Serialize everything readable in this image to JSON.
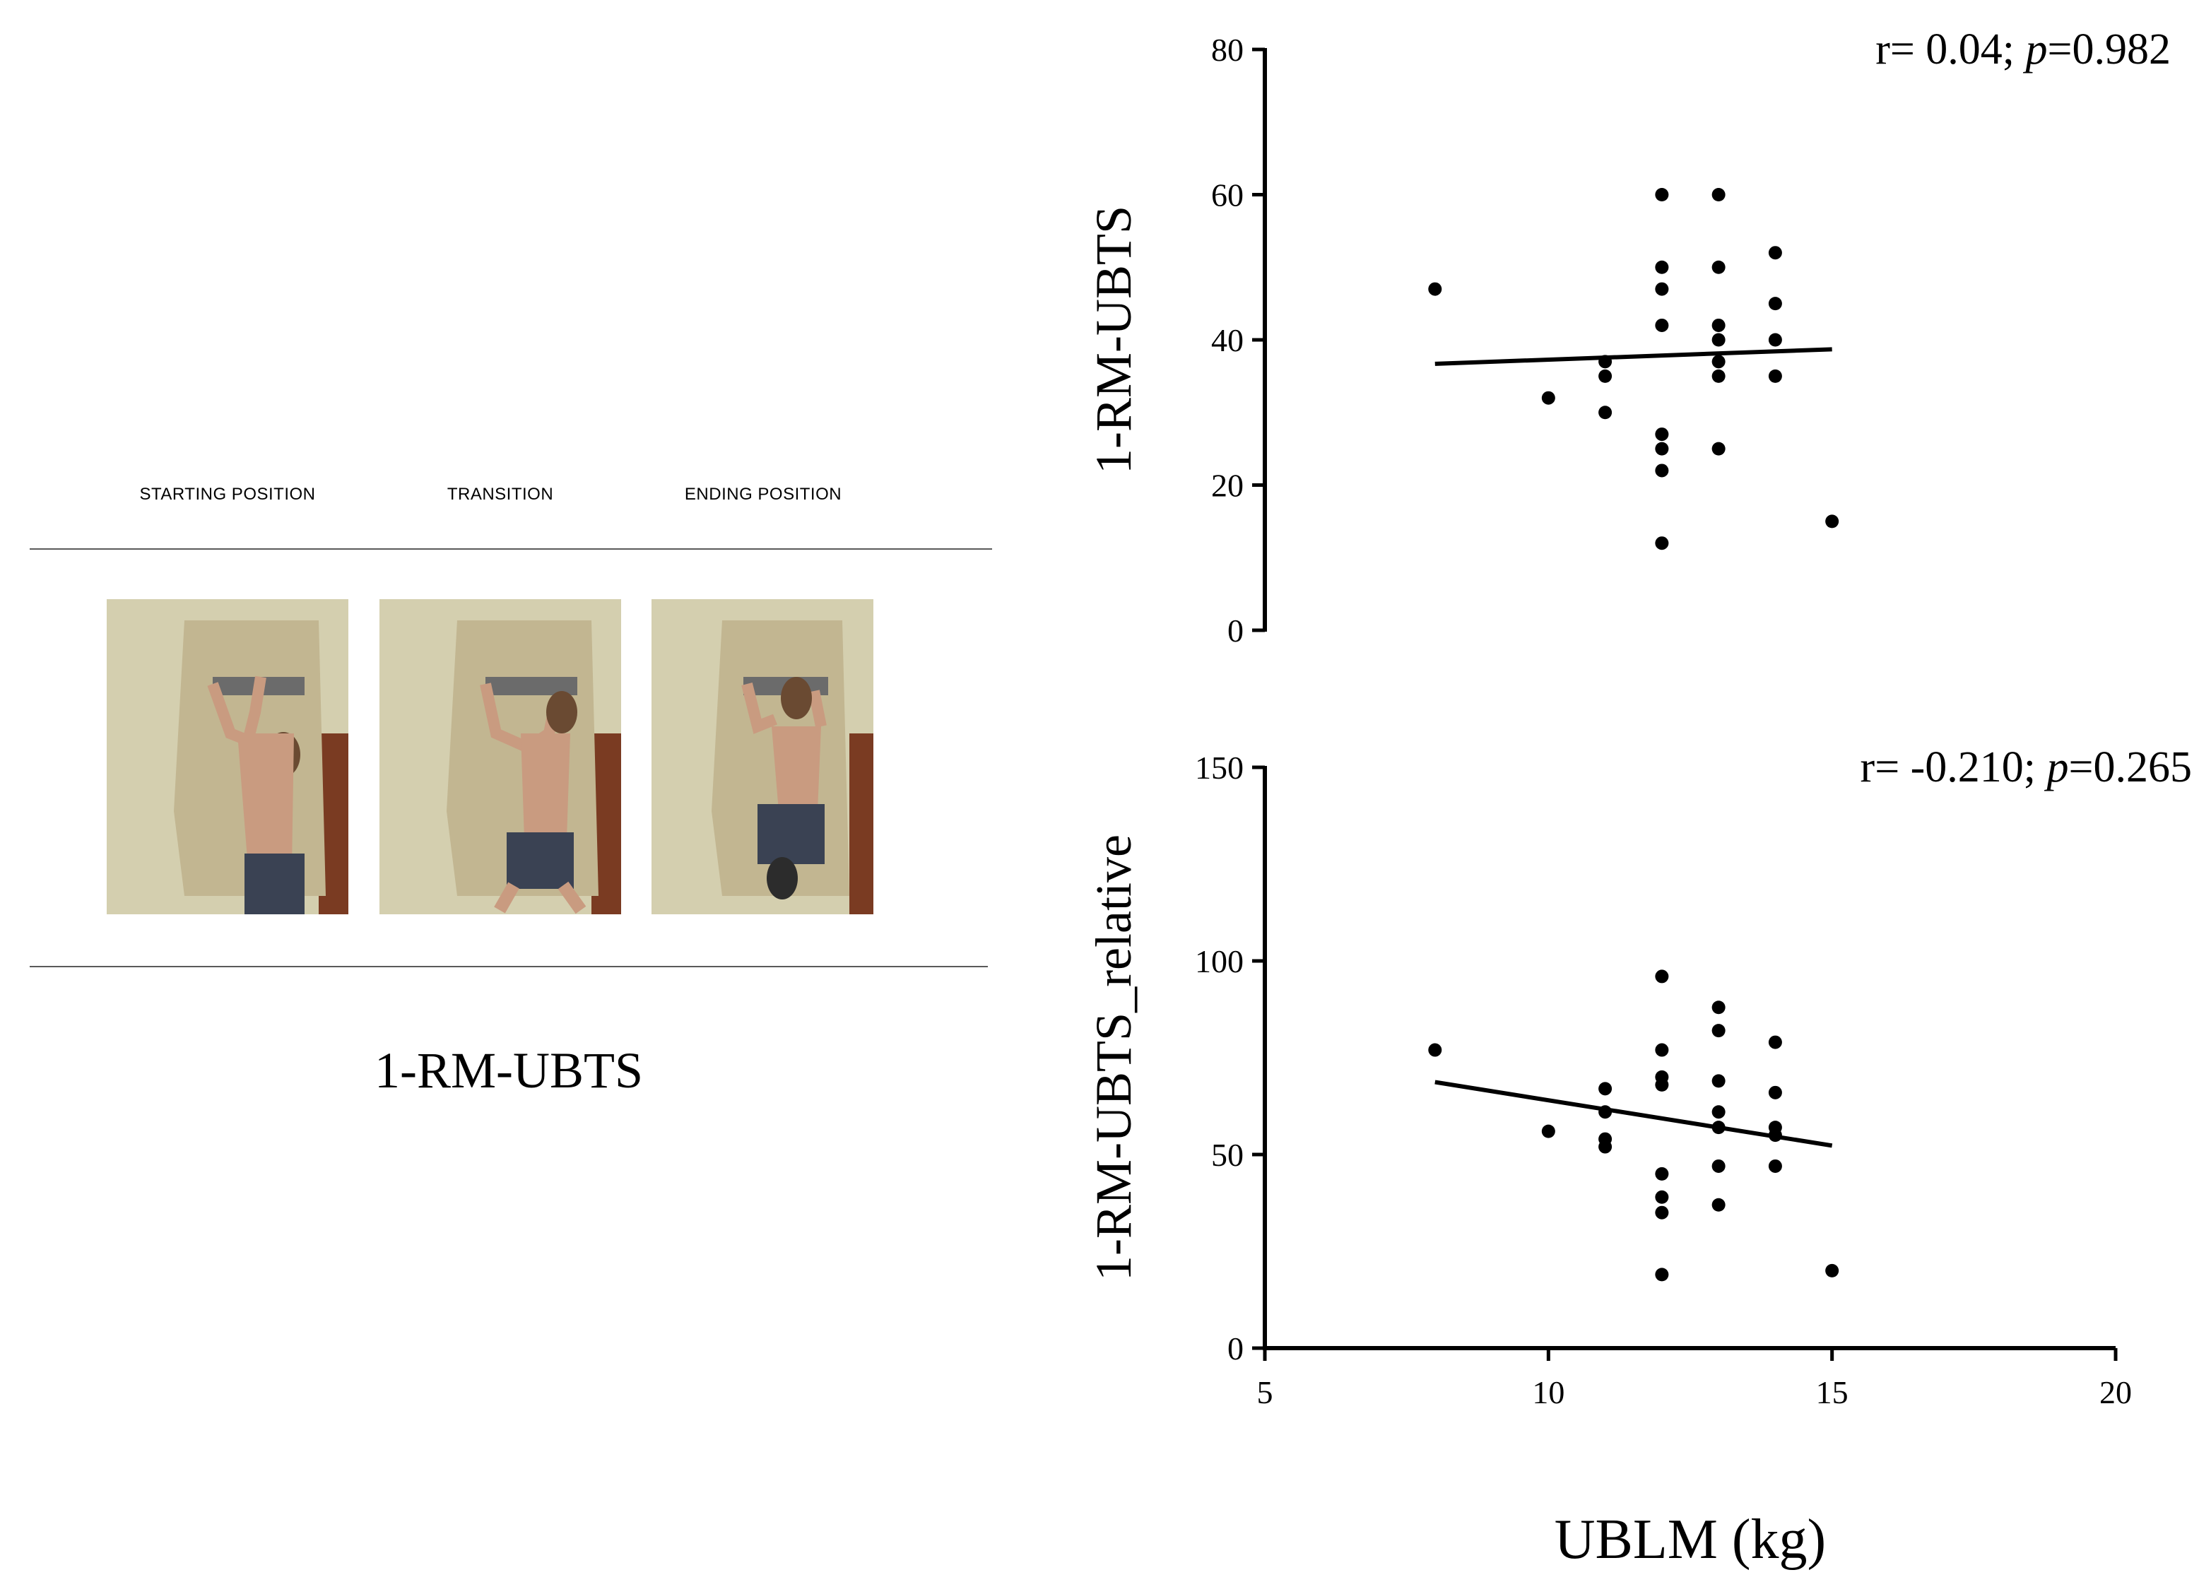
{
  "figure": {
    "phases": [
      "STARTING POSITION",
      "TRANSITION",
      "ENDING POSITION"
    ],
    "caption": "1-RM-UBTS",
    "photo_descriptions": [
      "climber-start",
      "climber-transition",
      "climber-end"
    ]
  },
  "colors": {
    "line": "#000000",
    "rule": "#5a5a5a",
    "wall": "#d4cfaf",
    "board": "#c2b691"
  },
  "chart_data": [
    {
      "type": "scatter",
      "title": "",
      "annotation": {
        "r": "r= 0.04;",
        "p_label": "p",
        "p_value": "=0.982"
      },
      "xlabel": "",
      "ylabel": "1-RM-UBTS",
      "xlim": [
        5,
        20
      ],
      "ylim": [
        0,
        80
      ],
      "xticks": [],
      "yticks": [
        0,
        20,
        40,
        60,
        80
      ],
      "points": [
        [
          8,
          47
        ],
        [
          10,
          32
        ],
        [
          11,
          37
        ],
        [
          11,
          35
        ],
        [
          11,
          30
        ],
        [
          12,
          60
        ],
        [
          12,
          50
        ],
        [
          12,
          47
        ],
        [
          12,
          42
        ],
        [
          12,
          27
        ],
        [
          12,
          25
        ],
        [
          12,
          22
        ],
        [
          12,
          12
        ],
        [
          13,
          60
        ],
        [
          13,
          50
        ],
        [
          13,
          42
        ],
        [
          13,
          40
        ],
        [
          13,
          37
        ],
        [
          13,
          35
        ],
        [
          13,
          25
        ],
        [
          14,
          52
        ],
        [
          14,
          45
        ],
        [
          14,
          40
        ],
        [
          14,
          35
        ],
        [
          15,
          15
        ]
      ],
      "trendline": [
        [
          8,
          36.7
        ],
        [
          15,
          38.7
        ]
      ]
    },
    {
      "type": "scatter",
      "title": "",
      "annotation": {
        "r": "r= -0.210;",
        "p_label": "p",
        "p_value": "=0.265"
      },
      "xlabel": "UBLM (kg)",
      "ylabel": "1-RM-UBTS_relative",
      "xlim": [
        5,
        20
      ],
      "ylim": [
        0,
        150
      ],
      "xticks": [
        5,
        10,
        15,
        20
      ],
      "yticks": [
        0,
        50,
        100,
        150
      ],
      "points": [
        [
          8,
          77
        ],
        [
          10,
          56
        ],
        [
          11,
          67
        ],
        [
          11,
          61
        ],
        [
          11,
          54
        ],
        [
          11,
          52
        ],
        [
          12,
          96
        ],
        [
          12,
          77
        ],
        [
          12,
          70
        ],
        [
          12,
          68
        ],
        [
          12,
          45
        ],
        [
          12,
          39
        ],
        [
          12,
          35
        ],
        [
          12,
          19
        ],
        [
          13,
          88
        ],
        [
          13,
          82
        ],
        [
          13,
          69
        ],
        [
          13,
          61
        ],
        [
          13,
          57
        ],
        [
          13,
          47
        ],
        [
          13,
          37
        ],
        [
          14,
          79
        ],
        [
          14,
          66
        ],
        [
          14,
          57
        ],
        [
          14,
          55
        ],
        [
          14,
          47
        ],
        [
          15,
          20
        ]
      ],
      "trendline": [
        [
          8,
          68.7
        ],
        [
          15,
          52.3
        ]
      ]
    }
  ]
}
